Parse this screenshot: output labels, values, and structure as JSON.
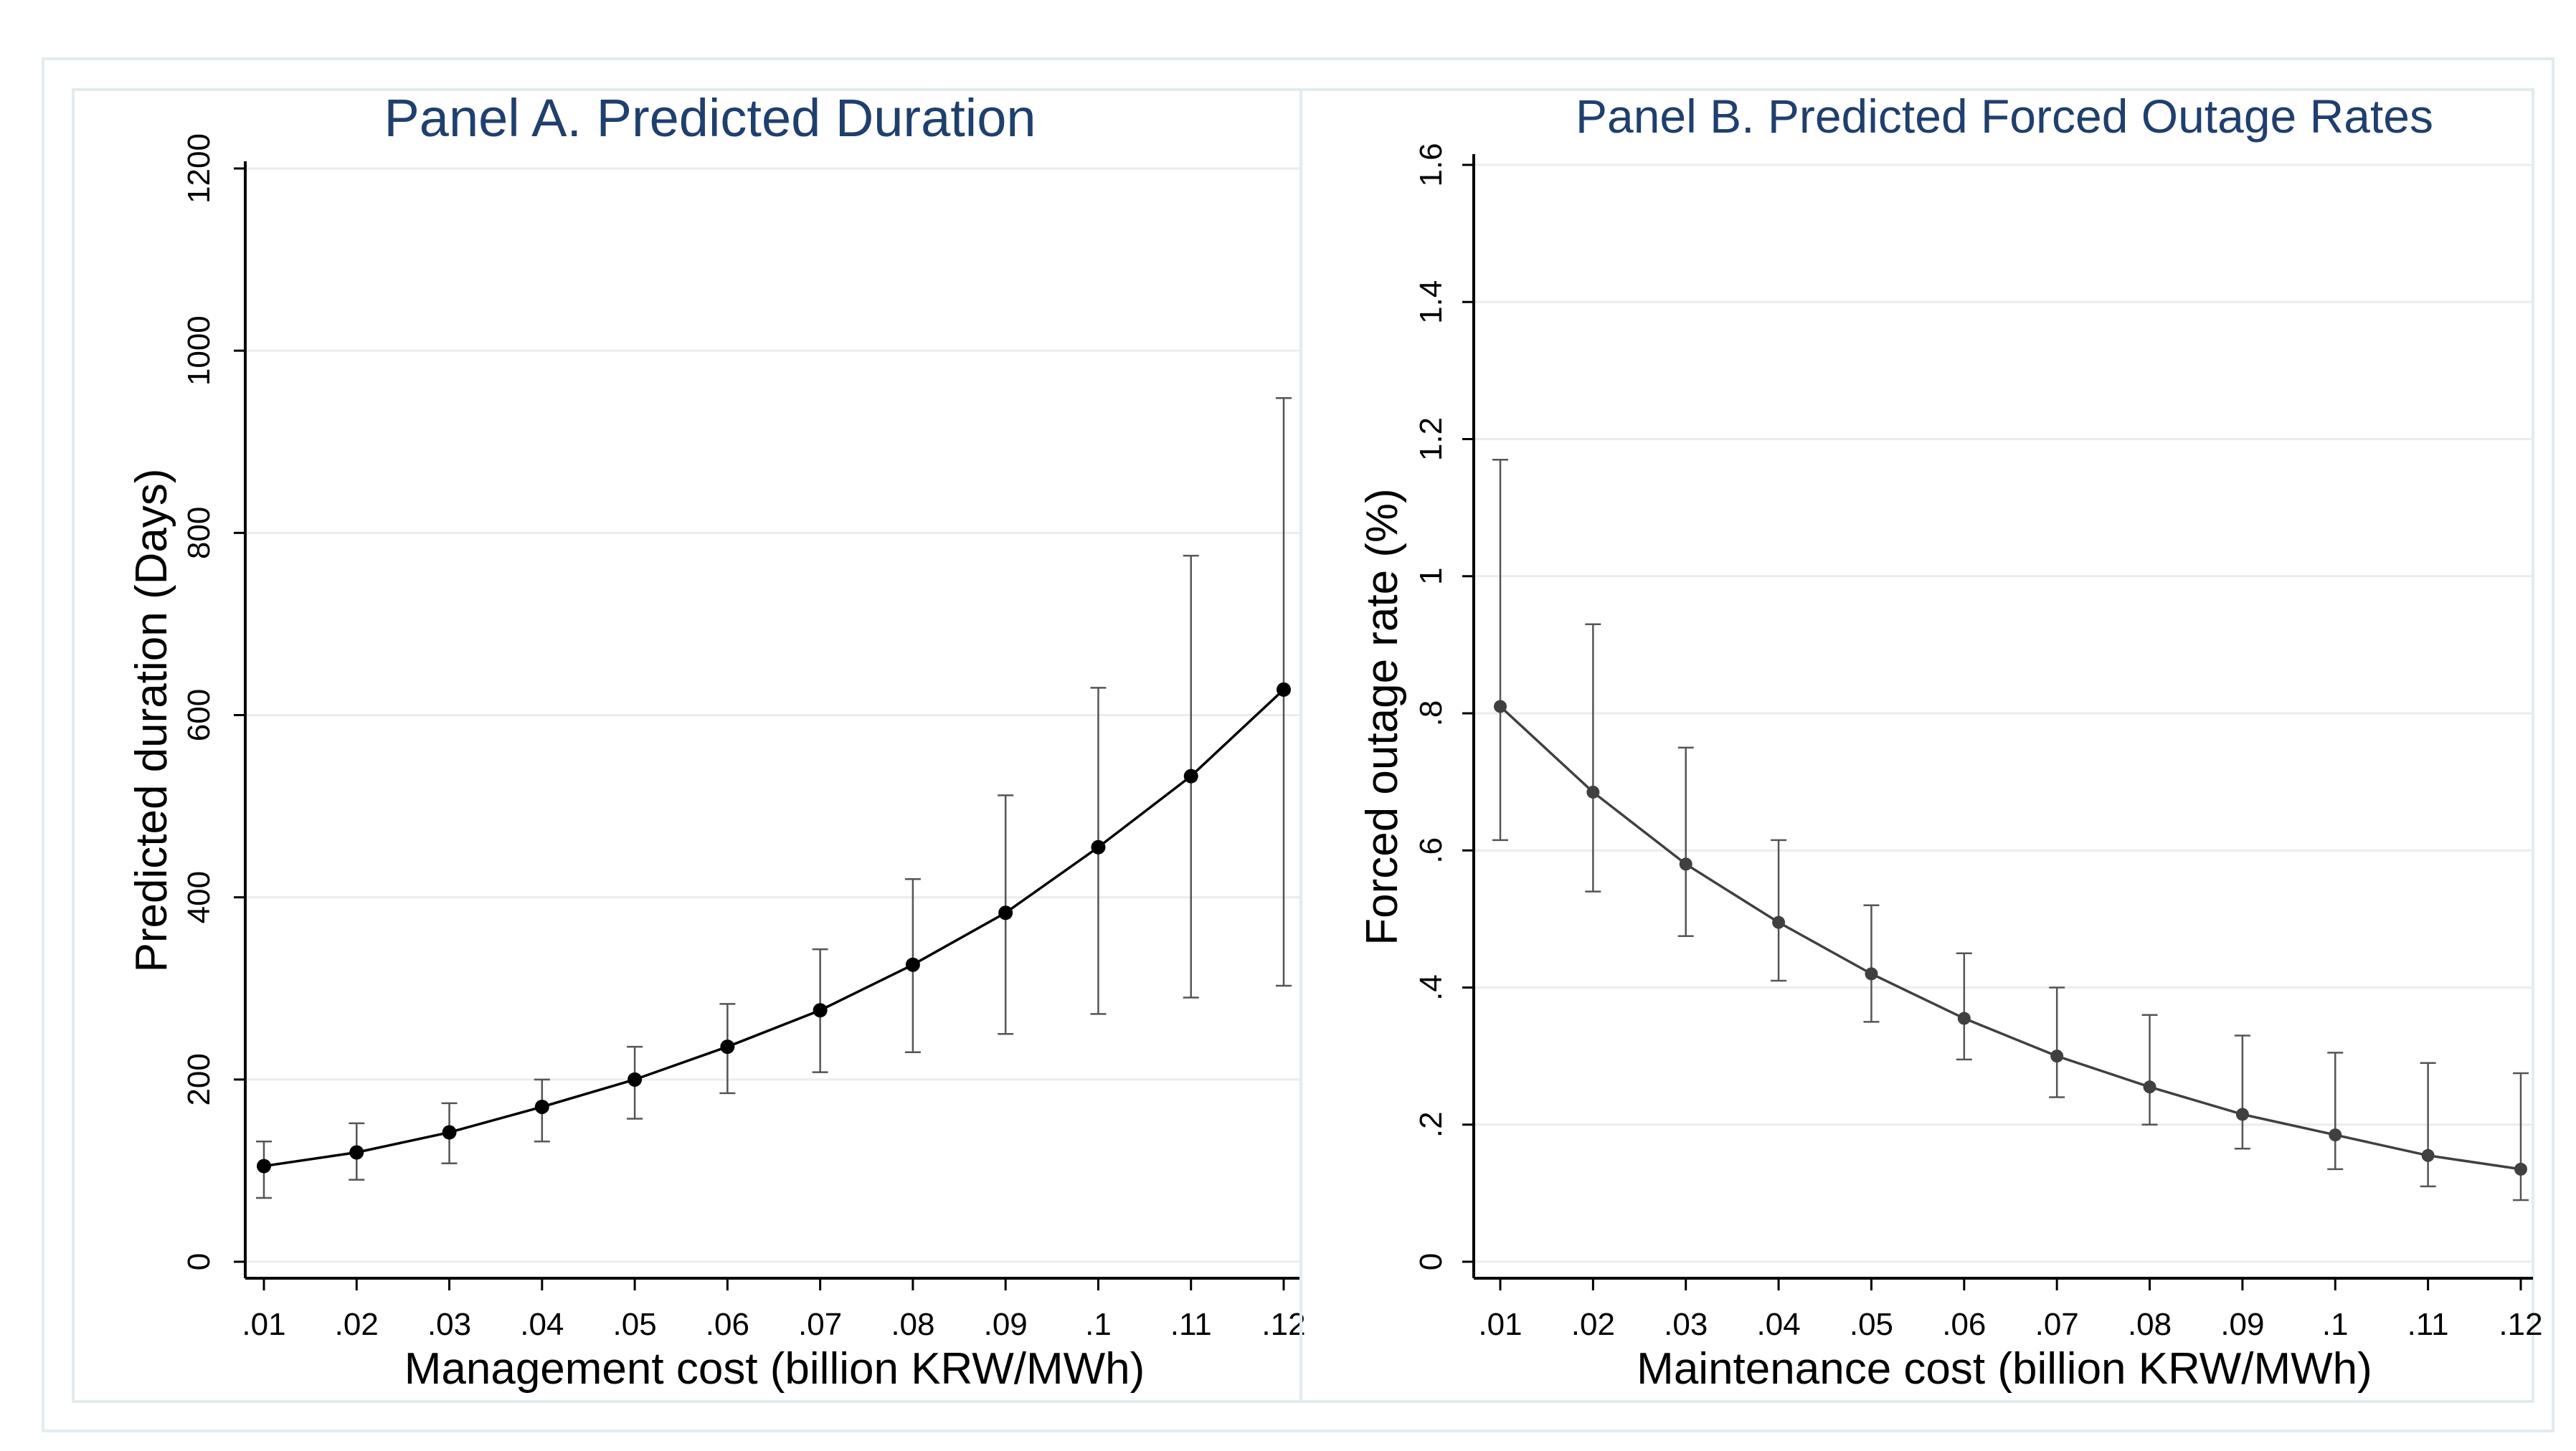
{
  "chart_data": [
    {
      "type": "line",
      "title": "Panel A. Predicted Duration",
      "xlabel": "Management cost (billion KRW/MWh)",
      "ylabel": "Predicted duration (Days)",
      "x": [
        0.01,
        0.02,
        0.03,
        0.04,
        0.05,
        0.06,
        0.07,
        0.08,
        0.09,
        0.1,
        0.11,
        0.12
      ],
      "x_tick_labels": [
        ".01",
        ".02",
        ".03",
        ".04",
        ".05",
        ".06",
        ".07",
        ".08",
        ".09",
        ".1",
        ".11",
        ".12"
      ],
      "y_ticks": [
        0,
        200,
        400,
        600,
        800,
        1000,
        1200
      ],
      "y_tick_labels": [
        "0",
        "200",
        "400",
        "600",
        "800",
        "1000",
        "1200"
      ],
      "xlim": [
        0.01,
        0.12
      ],
      "ylim": [
        0,
        1200
      ],
      "grid": true,
      "series": [
        {
          "name": "Predicted duration",
          "values": [
            105,
            120,
            142,
            170,
            200,
            236,
            276,
            326,
            383,
            455,
            533,
            628
          ],
          "ci_lower": [
            70,
            90,
            108,
            132,
            157,
            185,
            208,
            230,
            250,
            272,
            290,
            303
          ],
          "ci_upper": [
            132,
            152,
            174,
            200,
            236,
            283,
            343,
            420,
            512,
            630,
            775,
            948
          ]
        }
      ],
      "color": "#000000"
    },
    {
      "type": "line",
      "title": "Panel B. Predicted Forced Outage Rates",
      "xlabel": "Maintenance cost (billion KRW/MWh)",
      "ylabel": "Forced outage rate (%)",
      "x": [
        0.01,
        0.02,
        0.03,
        0.04,
        0.05,
        0.06,
        0.07,
        0.08,
        0.09,
        0.1,
        0.11,
        0.12
      ],
      "x_tick_labels": [
        ".01",
        ".02",
        ".03",
        ".04",
        ".05",
        ".06",
        ".07",
        ".08",
        ".09",
        ".1",
        ".11",
        ".12"
      ],
      "y_ticks": [
        0,
        0.2,
        0.4,
        0.6,
        0.8,
        1.0,
        1.2,
        1.4,
        1.6
      ],
      "y_tick_labels": [
        "0",
        ".2",
        ".4",
        ".6",
        ".8",
        "1",
        "1.2",
        "1.4",
        "1.6"
      ],
      "xlim": [
        0.01,
        0.12
      ],
      "ylim": [
        0,
        1.6
      ],
      "grid": true,
      "series": [
        {
          "name": "Forced outage rate",
          "values": [
            0.81,
            0.685,
            0.58,
            0.495,
            0.42,
            0.355,
            0.3,
            0.255,
            0.215,
            0.185,
            0.155,
            0.135
          ],
          "ci_lower": [
            0.615,
            0.54,
            0.475,
            0.41,
            0.35,
            0.295,
            0.24,
            0.2,
            0.165,
            0.135,
            0.11,
            0.09
          ],
          "ci_upper": [
            1.17,
            0.93,
            0.75,
            0.615,
            0.52,
            0.45,
            0.4,
            0.36,
            0.33,
            0.305,
            0.29,
            0.275
          ]
        }
      ],
      "color": "#404040"
    }
  ]
}
